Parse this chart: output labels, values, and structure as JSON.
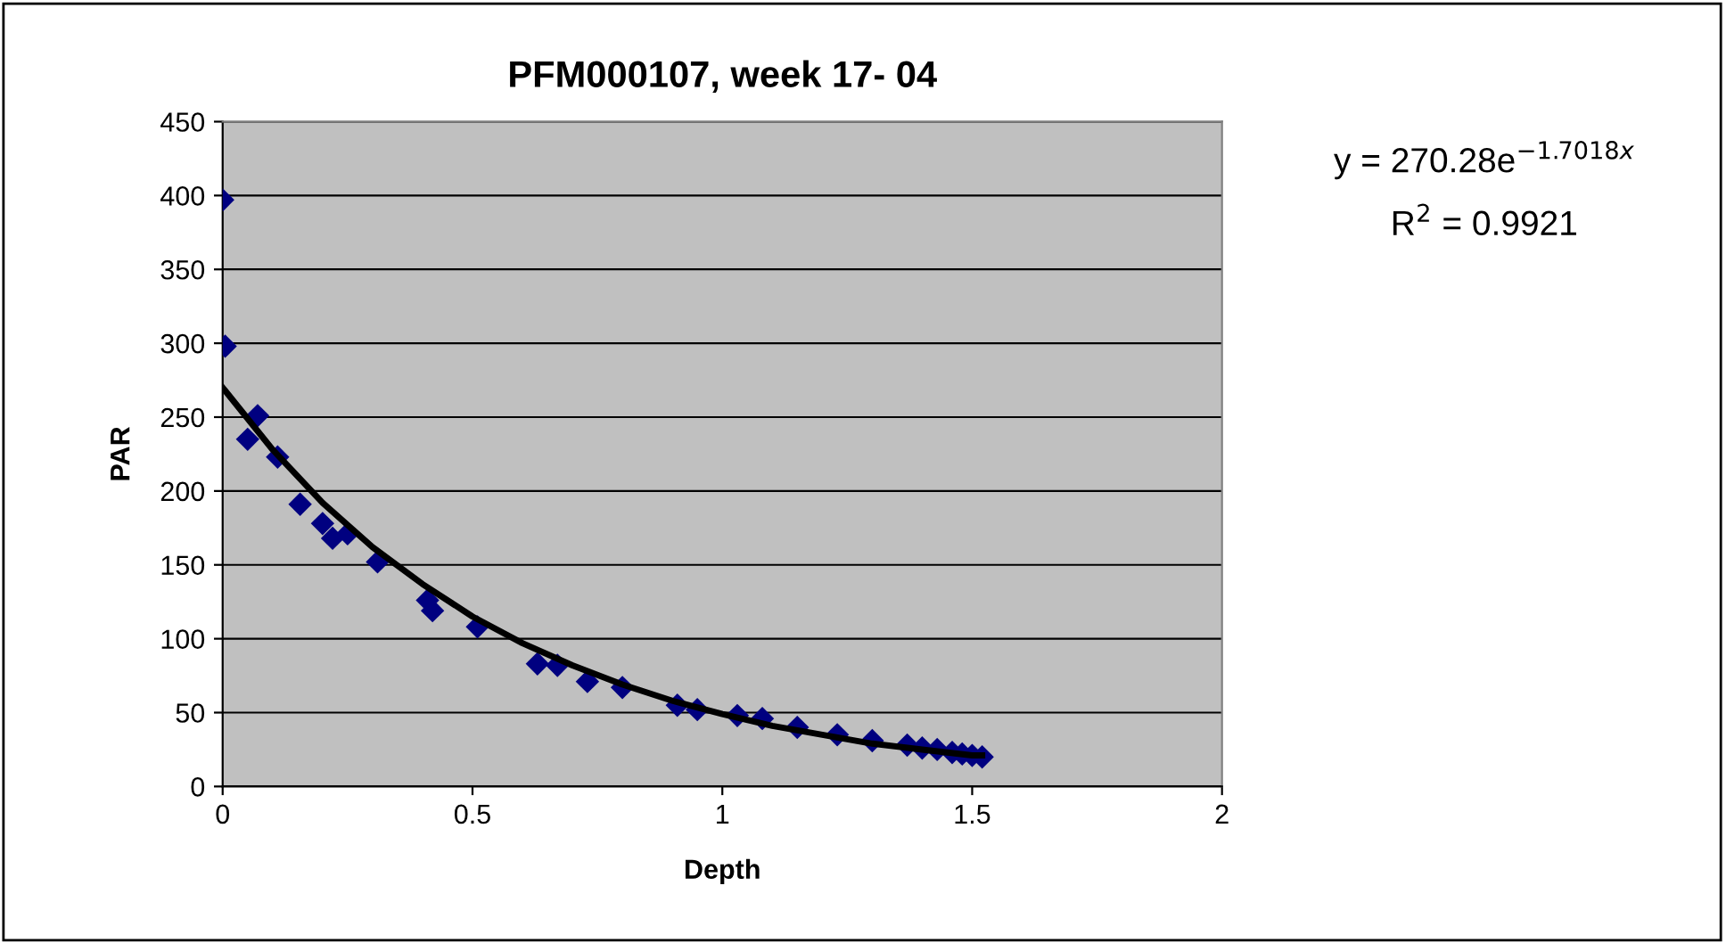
{
  "chart_data": {
    "type": "scatter",
    "title": "PFM000107, week 17- 04",
    "xlabel": "Depth",
    "ylabel": "PAR",
    "xlim": [
      0,
      2
    ],
    "xticks": [
      0,
      0.5,
      1,
      1.5,
      2
    ],
    "ylim": [
      0,
      450
    ],
    "yticks": [
      0,
      50,
      100,
      150,
      200,
      250,
      300,
      350,
      400,
      450
    ],
    "grid": "y",
    "annotations": [
      "y = 270.28e$^{−1.7018x}$",
      "R$^{2}$ = 0.9921"
    ],
    "series": [
      {
        "marker": "diamond",
        "color": "#000080",
        "x": [
          0,
          0.005,
          0.05,
          0.07,
          0.11,
          0.155,
          0.2,
          0.22,
          0.25,
          0.31,
          0.41,
          0.42,
          0.51,
          0.63,
          0.67,
          0.73,
          0.8,
          0.91,
          0.95,
          1.03,
          1.08,
          1.15,
          1.23,
          1.3,
          1.37,
          1.4,
          1.43,
          1.46,
          1.48,
          1.5,
          1.52
        ],
        "values": [
          397,
          298,
          235,
          251,
          223,
          191,
          178,
          168,
          171,
          152,
          126,
          119,
          108,
          83,
          82,
          71,
          67,
          55,
          52,
          48,
          46,
          40,
          35,
          31,
          28,
          26,
          25,
          23,
          22,
          21,
          20
        ]
      },
      {
        "type": "line",
        "color": "#000000",
        "line_style": "solid",
        "x": [
          0,
          0.1,
          0.2,
          0.3,
          0.4,
          0.5,
          0.6,
          0.7,
          0.8,
          0.9,
          1.0,
          1.1,
          1.2,
          1.3,
          1.4,
          1.5,
          1.52
        ],
        "values": [
          270,
          228,
          192,
          162,
          137,
          115,
          97,
          82,
          69,
          58,
          49,
          41,
          35,
          29,
          25,
          21,
          21
        ]
      }
    ]
  }
}
